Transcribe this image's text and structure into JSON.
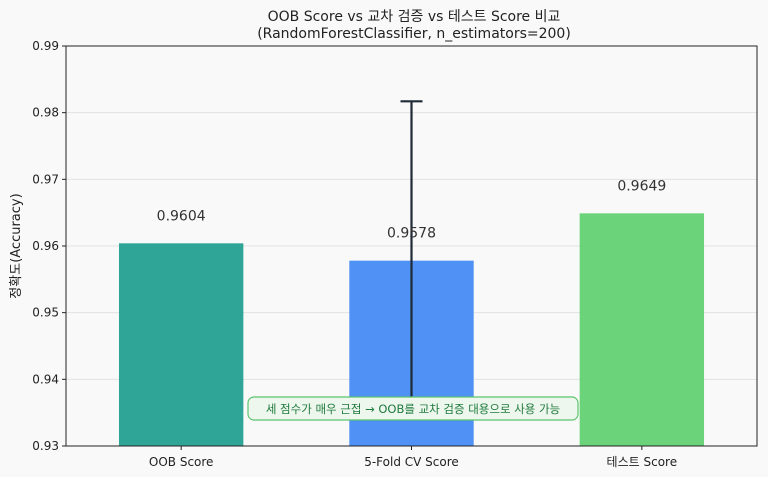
{
  "chart_data": {
    "type": "bar",
    "title": "OOB Score vs 교차 검증 vs 테스트 Score 비교",
    "subtitle": "(RandomForestClassifier, n_estimators=200)",
    "xlabel": "",
    "ylabel": "정확도(Accuracy)",
    "ylim": [
      0.93,
      0.99
    ],
    "yticks": [
      "0.93",
      "0.94",
      "0.95",
      "0.96",
      "0.97",
      "0.98",
      "0.99"
    ],
    "grid": "y",
    "categories": [
      "OOB Score",
      "5-Fold CV Score",
      "테스트 Score"
    ],
    "values": [
      0.9604,
      0.9578,
      0.9649
    ],
    "value_labels": [
      "0.9604",
      "0.9578",
      "0.9649"
    ],
    "error": [
      null,
      0.0239,
      null
    ],
    "colors": [
      "#2ea597",
      "#4f91f5",
      "#6bd47a"
    ],
    "annotation": "세 점수가 매우 근접 → OOB를 교차 검증 대용으로 사용 가능"
  }
}
